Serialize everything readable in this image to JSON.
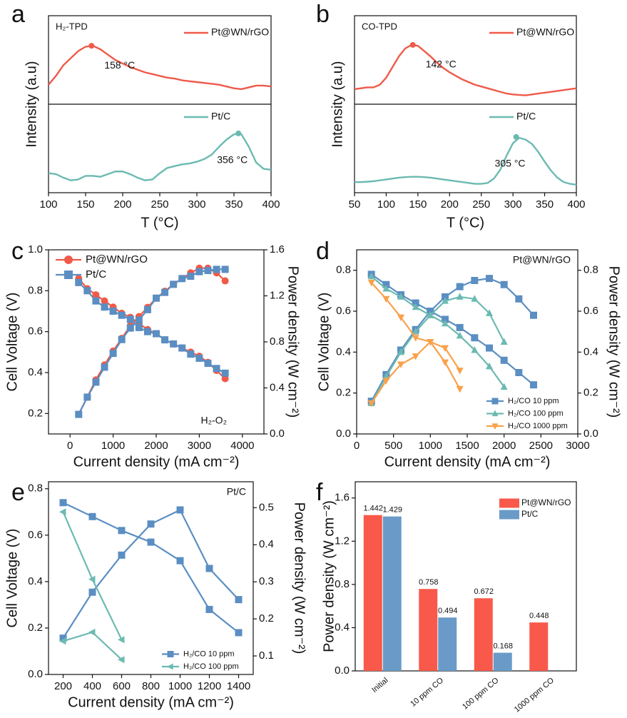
{
  "chart_data": [
    {
      "type": "tpd",
      "panel_label": "a",
      "title": "H₂-TPD",
      "x_label": "T (°C)",
      "y_label": "Intensity (a.u)",
      "xlim": [
        100,
        400
      ],
      "xticks": [
        100,
        150,
        200,
        250,
        300,
        350,
        400
      ],
      "ylim": [
        0,
        10
      ],
      "series": [
        {
          "name": "Pt@WN/rGO",
          "color": "#ef5a4a",
          "x": [
            100,
            110,
            120,
            130,
            140,
            150,
            160,
            170,
            180,
            190,
            200,
            210,
            220,
            230,
            240,
            250,
            260,
            270,
            280,
            290,
            300,
            310,
            320,
            330,
            340,
            350,
            360,
            370,
            380,
            390,
            400
          ],
          "values": [
            6.1,
            6.6,
            7.2,
            7.6,
            8.0,
            8.25,
            8.3,
            8.1,
            7.8,
            7.5,
            7.3,
            7.1,
            6.95,
            6.8,
            6.7,
            6.6,
            6.5,
            6.45,
            6.35,
            6.3,
            6.25,
            6.2,
            6.15,
            6.1,
            6.0,
            5.9,
            5.85,
            5.95,
            6.05,
            6.05,
            6.0
          ],
          "peak": {
            "x": 158,
            "value": 8.3,
            "label": "158 °C"
          }
        },
        {
          "name": "Pt/C",
          "color": "#6bbab2",
          "x": [
            100,
            110,
            120,
            130,
            140,
            150,
            160,
            170,
            180,
            190,
            200,
            210,
            220,
            230,
            240,
            250,
            260,
            270,
            280,
            290,
            300,
            310,
            320,
            330,
            340,
            350,
            360,
            370,
            380,
            390,
            400
          ],
          "values": [
            1.1,
            1.05,
            0.85,
            0.7,
            0.75,
            0.95,
            0.95,
            0.9,
            1.05,
            1.2,
            1.2,
            1.05,
            0.85,
            0.7,
            0.75,
            1.1,
            1.4,
            1.5,
            1.6,
            1.65,
            1.75,
            1.9,
            2.15,
            2.6,
            3.0,
            3.3,
            3.3,
            2.6,
            1.7,
            1.35,
            1.3
          ],
          "peak": {
            "x": 356,
            "value": 3.35,
            "label": "356 °C"
          }
        }
      ]
    },
    {
      "type": "tpd",
      "panel_label": "b",
      "title": "CO-TPD",
      "x_label": "T (°C)",
      "y_label": "Intensity (a.u)",
      "xlim": [
        50,
        400
      ],
      "xticks": [
        50,
        100,
        150,
        200,
        250,
        300,
        350,
        400
      ],
      "ylim": [
        0,
        10
      ],
      "series": [
        {
          "name": "Pt@WN/rGO",
          "color": "#ef5a4a",
          "x": [
            50,
            60,
            70,
            80,
            90,
            100,
            110,
            120,
            130,
            140,
            150,
            160,
            170,
            180,
            190,
            200,
            210,
            220,
            230,
            240,
            250,
            260,
            270,
            280,
            290,
            300,
            310,
            320,
            330,
            340,
            350,
            360,
            370,
            380,
            390,
            400
          ],
          "values": [
            5.85,
            5.9,
            5.95,
            5.95,
            6.1,
            6.5,
            7.1,
            7.7,
            8.15,
            8.35,
            8.3,
            8.0,
            7.7,
            7.35,
            7.05,
            6.8,
            6.6,
            6.4,
            6.25,
            6.1,
            6.0,
            5.9,
            5.8,
            5.7,
            5.6,
            5.55,
            5.52,
            5.5,
            5.55,
            5.6,
            5.65,
            5.7,
            5.75,
            5.8,
            5.85,
            5.9
          ],
          "peak": {
            "x": 142,
            "value": 8.35,
            "label": "142 °C"
          }
        },
        {
          "name": "Pt/C",
          "color": "#6bbab2",
          "x": [
            50,
            60,
            70,
            80,
            90,
            100,
            110,
            120,
            130,
            140,
            150,
            160,
            170,
            180,
            190,
            200,
            210,
            220,
            230,
            240,
            250,
            260,
            270,
            280,
            290,
            300,
            310,
            320,
            330,
            340,
            350,
            360,
            370,
            380,
            390,
            400
          ],
          "values": [
            0.6,
            0.6,
            0.62,
            0.65,
            0.7,
            0.75,
            0.8,
            0.85,
            0.88,
            0.9,
            0.9,
            0.88,
            0.85,
            0.8,
            0.75,
            0.7,
            0.65,
            0.6,
            0.55,
            0.5,
            0.5,
            0.55,
            0.8,
            1.3,
            2.1,
            2.8,
            3.1,
            3.0,
            2.75,
            2.3,
            1.75,
            1.25,
            0.85,
            0.6,
            0.5,
            0.45
          ],
          "peak": {
            "x": 305,
            "value": 3.15,
            "label": "305 °C"
          }
        }
      ]
    },
    {
      "type": "polarization",
      "panel_label": "c",
      "x_label": "Current density (mA cm⁻²)",
      "y_label": "Cell Voltage (V)",
      "y2_label": "Power density (W cm⁻²)",
      "annotation": "H₂-O₂",
      "annotation_position": "lower right",
      "legend": "upper left",
      "xlim": [
        -500,
        4500
      ],
      "xticks": [
        0,
        1000,
        2000,
        3000,
        4000
      ],
      "ylim": [
        0.1,
        1.0
      ],
      "yticks": [
        0.2,
        0.4,
        0.6,
        0.8,
        {
          "value": 1,
          "label": "1.0"
        }
      ],
      "y2lim": [
        0,
        1.6
      ],
      "y2ticks": [
        {
          "value": 0,
          "label": "0.0"
        },
        0.4,
        0.8,
        1.2,
        1.6
      ],
      "x": [
        200,
        400,
        600,
        800,
        1000,
        1200,
        1400,
        1600,
        1800,
        2000,
        2200,
        2400,
        2600,
        2800,
        3000,
        3200,
        3400,
        3600
      ],
      "series": [
        {
          "name": "Pt@WN/rGO",
          "color": "#f05a48",
          "marker": "circle",
          "values": [
            0.86,
            0.81,
            0.78,
            0.75,
            0.72,
            0.69,
            0.67,
            0.64,
            0.61,
            0.59,
            0.56,
            0.54,
            0.52,
            0.5,
            0.48,
            0.45,
            0.41,
            0.37
          ],
          "power": [
            0.17,
            0.32,
            0.47,
            0.6,
            0.72,
            0.83,
            0.94,
            1.02,
            1.1,
            1.18,
            1.24,
            1.3,
            1.35,
            1.4,
            1.44,
            1.44,
            1.4,
            1.33
          ]
        },
        {
          "name": "Pt/C",
          "color": "#5b8ec2",
          "marker": "square",
          "values": [
            0.84,
            0.8,
            0.75,
            0.72,
            0.7,
            0.68,
            0.66,
            0.62,
            0.6,
            0.59,
            0.56,
            0.54,
            0.52,
            0.49,
            0.47,
            0.445,
            0.42,
            0.397
          ],
          "power": [
            0.17,
            0.32,
            0.45,
            0.58,
            0.7,
            0.82,
            0.92,
            0.99,
            1.08,
            1.18,
            1.23,
            1.3,
            1.35,
            1.37,
            1.41,
            1.42,
            1.43,
            1.43
          ]
        }
      ]
    },
    {
      "type": "polarization",
      "panel_label": "d",
      "x_label": "Current density (mA cm⁻²)",
      "y_label": "Cell Voltage (V)",
      "y2_label": "Power density (W cm⁻²)",
      "annotation": "Pt@WN/rGO",
      "annotation_position": "upper right",
      "legend": "lower right",
      "xlim": [
        0,
        3000
      ],
      "xticks": [
        0,
        500,
        1000,
        1500,
        2000,
        2500,
        3000
      ],
      "ylim": [
        0,
        0.9
      ],
      "yticks": [
        {
          "value": 0,
          "label": "0.0"
        },
        0.2,
        0.4,
        0.6,
        0.8
      ],
      "y2lim": [
        0,
        0.9
      ],
      "y2ticks": [
        {
          "value": 0,
          "label": "0.0"
        },
        0.2,
        0.4,
        0.6,
        0.8
      ],
      "series": [
        {
          "name": "H₂/CO 10 ppm",
          "color": "#5b8ec2",
          "marker": "square",
          "x": [
            200,
            400,
            600,
            800,
            1000,
            1200,
            1400,
            1600,
            1800,
            2000,
            2200,
            2400
          ],
          "values": [
            0.78,
            0.73,
            0.68,
            0.64,
            0.6,
            0.56,
            0.52,
            0.47,
            0.42,
            0.36,
            0.3,
            0.24
          ],
          "power": [
            0.16,
            0.29,
            0.41,
            0.51,
            0.6,
            0.67,
            0.72,
            0.75,
            0.76,
            0.73,
            0.66,
            0.58
          ]
        },
        {
          "name": "H₂/CO 100 ppm",
          "color": "#6cbab2",
          "marker": "triangle-up",
          "x": [
            200,
            400,
            600,
            800,
            1000,
            1200,
            1400,
            1600,
            1800,
            2000
          ],
          "values": [
            0.77,
            0.71,
            0.67,
            0.62,
            0.58,
            0.54,
            0.48,
            0.41,
            0.33,
            0.23
          ],
          "power": [
            0.15,
            0.28,
            0.4,
            0.5,
            0.58,
            0.65,
            0.67,
            0.66,
            0.59,
            0.45
          ]
        },
        {
          "name": "H₂/CO 1000 ppm",
          "color": "#f9a14a",
          "marker": "triangle-down",
          "x": [
            200,
            400,
            600,
            800,
            1000,
            1200,
            1400
          ],
          "values": [
            0.74,
            0.66,
            0.57,
            0.47,
            0.45,
            0.35,
            0.22
          ],
          "power": [
            0.15,
            0.26,
            0.34,
            0.38,
            0.45,
            0.42,
            0.31
          ]
        }
      ]
    },
    {
      "type": "polarization",
      "panel_label": "e",
      "x_label": "Current density (mA cm⁻²)",
      "y_label": "Cell Voltage (V)",
      "y2_label": "Power density (W cm⁻²)",
      "annotation": "Pt/C",
      "annotation_position": "upper right",
      "legend": "lower right",
      "xlim": [
        100,
        1500
      ],
      "xticks": [
        200,
        400,
        600,
        800,
        1000,
        1200,
        1400
      ],
      "ylim": [
        0,
        0.83
      ],
      "yticks": [
        {
          "value": 0,
          "label": "0.0"
        },
        0.2,
        0.4,
        0.6,
        0.8
      ],
      "y2lim": [
        0.05,
        0.57
      ],
      "y2ticks": [
        0.1,
        0.2,
        0.3,
        0.4,
        0.5
      ],
      "series": [
        {
          "name": "H₂/CO 10 ppm",
          "color": "#5b8ec2",
          "marker": "square",
          "x": [
            200,
            400,
            600,
            800,
            1000,
            1200,
            1400
          ],
          "values": [
            0.74,
            0.68,
            0.62,
            0.57,
            0.49,
            0.28,
            0.18
          ],
          "power": [
            0.148,
            0.272,
            0.372,
            0.456,
            0.494,
            0.336,
            0.252
          ]
        },
        {
          "name": "H₂/CO 100 ppm",
          "color": "#6cbab2",
          "marker": "triangle-left",
          "x": [
            200,
            400,
            600
          ],
          "values": [
            0.7,
            0.41,
            0.15
          ],
          "power": [
            0.14,
            0.164,
            0.09
          ]
        }
      ]
    },
    {
      "type": "bar",
      "panel_label": "f",
      "y_label": "Power density (W cm⁻²)",
      "legend": "upper right",
      "categories": [
        "Initial",
        "10 ppm CO",
        "100 ppm CO",
        "1000 ppm CO"
      ],
      "ylim": [
        0,
        1.75
      ],
      "yticks": [
        {
          "value": 0,
          "label": "0.0"
        },
        0.4,
        0.8,
        1.2,
        1.6
      ],
      "series": [
        {
          "name": "Pt@WN/rGO",
          "color": "#f8594a",
          "values": [
            1.442,
            0.758,
            0.672,
            0.448
          ]
        },
        {
          "name": "Pt/C",
          "color": "#6a9bc8",
          "values": [
            1.429,
            0.494,
            0.168,
            null
          ]
        }
      ]
    }
  ]
}
